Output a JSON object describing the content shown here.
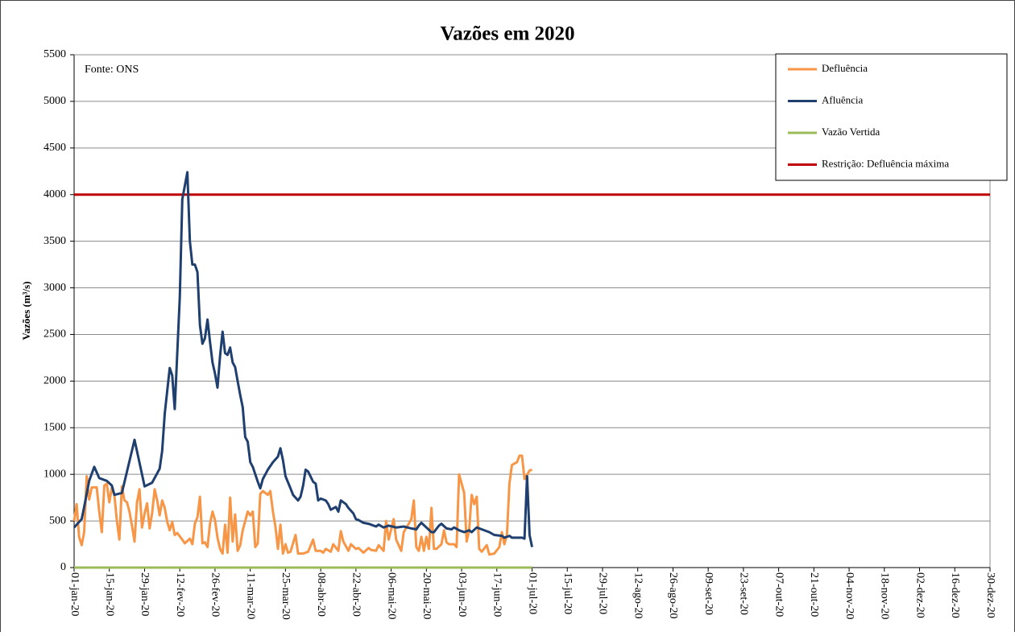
{
  "chart_data": {
    "type": "line",
    "title": "Vazões em 2020",
    "ylabel": "Vazões (m³/s)",
    "annotation": "Fonte: ONS",
    "legend": "upper right",
    "grid": true,
    "ylim": [
      0,
      5500
    ],
    "yticks": [
      0,
      500,
      1000,
      1500,
      2000,
      2500,
      3000,
      3500,
      4000,
      4500,
      5000,
      5500
    ],
    "xlim": [
      "2020-01-01",
      "2020-12-30"
    ],
    "xticks": [
      {
        "value": "2020-01-01",
        "label": "01-jan-20"
      },
      {
        "value": "2020-01-15",
        "label": "15-jan-20"
      },
      {
        "value": "2020-01-29",
        "label": "29-jan-20"
      },
      {
        "value": "2020-02-12",
        "label": "12-fev-20"
      },
      {
        "value": "2020-02-26",
        "label": "26-fev-20"
      },
      {
        "value": "2020-03-11",
        "label": "11-mar-20"
      },
      {
        "value": "2020-03-25",
        "label": "25-mar-20"
      },
      {
        "value": "2020-04-08",
        "label": "08-abr-20"
      },
      {
        "value": "2020-04-22",
        "label": "22-abr-20"
      },
      {
        "value": "2020-05-06",
        "label": "06-mai-20"
      },
      {
        "value": "2020-05-20",
        "label": "20-mai-20"
      },
      {
        "value": "2020-06-03",
        "label": "03-jun-20"
      },
      {
        "value": "2020-06-17",
        "label": "17-jun-20"
      },
      {
        "value": "2020-07-01",
        "label": "01-jul-20"
      },
      {
        "value": "2020-07-15",
        "label": "15-jul-20"
      },
      {
        "value": "2020-07-29",
        "label": "29-jul-20"
      },
      {
        "value": "2020-08-12",
        "label": "12-ago-20"
      },
      {
        "value": "2020-08-26",
        "label": "26-ago-20"
      },
      {
        "value": "2020-09-09",
        "label": "09-set-20"
      },
      {
        "value": "2020-09-23",
        "label": "23-set-20"
      },
      {
        "value": "2020-10-07",
        "label": "07-out-20"
      },
      {
        "value": "2020-10-21",
        "label": "21-out-20"
      },
      {
        "value": "2020-11-04",
        "label": "04-nov-20"
      },
      {
        "value": "2020-11-18",
        "label": "18-nov-20"
      },
      {
        "value": "2020-12-02",
        "label": "02-dez-20"
      },
      {
        "value": "2020-12-16",
        "label": "16-dez-20"
      },
      {
        "value": "2020-12-30",
        "label": "30-dez-20"
      }
    ],
    "series": [
      {
        "name": "Defluência",
        "color": "#f79646",
        "x": [
          "2020-01-01",
          "2020-01-02",
          "2020-01-03",
          "2020-01-04",
          "2020-01-05",
          "2020-01-06",
          "2020-01-07",
          "2020-01-08",
          "2020-01-10",
          "2020-01-11",
          "2020-01-12",
          "2020-01-13",
          "2020-01-14",
          "2020-01-15",
          "2020-01-16",
          "2020-01-17",
          "2020-01-18",
          "2020-01-19",
          "2020-01-20",
          "2020-01-21",
          "2020-01-22",
          "2020-01-23",
          "2020-01-24",
          "2020-01-25",
          "2020-01-26",
          "2020-01-27",
          "2020-01-28",
          "2020-01-29",
          "2020-01-30",
          "2020-01-31",
          "2020-02-01",
          "2020-02-02",
          "2020-02-03",
          "2020-02-04",
          "2020-02-05",
          "2020-02-06",
          "2020-02-07",
          "2020-02-08",
          "2020-02-09",
          "2020-02-10",
          "2020-02-11",
          "2020-02-13",
          "2020-02-14",
          "2020-02-16",
          "2020-02-17",
          "2020-02-18",
          "2020-02-19",
          "2020-02-20",
          "2020-02-21",
          "2020-02-22",
          "2020-02-23",
          "2020-02-24",
          "2020-02-25",
          "2020-02-26",
          "2020-02-27",
          "2020-02-28",
          "2020-02-29",
          "2020-03-01",
          "2020-03-02",
          "2020-03-03",
          "2020-03-04",
          "2020-03-05",
          "2020-03-06",
          "2020-03-07",
          "2020-03-08",
          "2020-03-10",
          "2020-03-11",
          "2020-03-12",
          "2020-03-13",
          "2020-03-14",
          "2020-03-15",
          "2020-03-16",
          "2020-03-18",
          "2020-03-19",
          "2020-03-20",
          "2020-03-21",
          "2020-03-22",
          "2020-03-23",
          "2020-03-24",
          "2020-03-25",
          "2020-03-26",
          "2020-03-27",
          "2020-03-29",
          "2020-03-30",
          "2020-03-31",
          "2020-04-01",
          "2020-04-03",
          "2020-04-05",
          "2020-04-06",
          "2020-04-08",
          "2020-04-09",
          "2020-04-10",
          "2020-04-12",
          "2020-04-13",
          "2020-04-15",
          "2020-04-16",
          "2020-04-17",
          "2020-04-19",
          "2020-04-20",
          "2020-04-22",
          "2020-04-23",
          "2020-04-25",
          "2020-04-27",
          "2020-04-28",
          "2020-04-30",
          "2020-05-01",
          "2020-05-03",
          "2020-05-04",
          "2020-05-05",
          "2020-05-07",
          "2020-05-08",
          "2020-05-10",
          "2020-05-11",
          "2020-05-13",
          "2020-05-14",
          "2020-05-15",
          "2020-05-16",
          "2020-05-17",
          "2020-05-18",
          "2020-05-19",
          "2020-05-20",
          "2020-05-21",
          "2020-05-22",
          "2020-05-23",
          "2020-05-24",
          "2020-05-26",
          "2020-05-27",
          "2020-05-28",
          "2020-05-29",
          "2020-05-31",
          "2020-06-01",
          "2020-06-02",
          "2020-06-04",
          "2020-06-05",
          "2020-06-06",
          "2020-06-07",
          "2020-06-08",
          "2020-06-09",
          "2020-06-10",
          "2020-06-11",
          "2020-06-13",
          "2020-06-14",
          "2020-06-16",
          "2020-06-18",
          "2020-06-19",
          "2020-06-20",
          "2020-06-21",
          "2020-06-22",
          "2020-06-23",
          "2020-06-25",
          "2020-06-26",
          "2020-06-27",
          "2020-06-28",
          "2020-06-30",
          "2020-07-01"
        ],
        "values": [
          500,
          680,
          330,
          240,
          380,
          980,
          730,
          860,
          860,
          600,
          380,
          880,
          900,
          700,
          860,
          780,
          500,
          300,
          870,
          720,
          700,
          600,
          450,
          280,
          700,
          840,
          430,
          580,
          690,
          420,
          580,
          840,
          720,
          560,
          720,
          640,
          490,
          400,
          490,
          350,
          370,
          300,
          260,
          310,
          250,
          470,
          540,
          760,
          260,
          270,
          220,
          470,
          600,
          510,
          320,
          200,
          150,
          460,
          160,
          750,
          280,
          570,
          180,
          240,
          400,
          600,
          560,
          600,
          220,
          260,
          790,
          820,
          780,
          820,
          600,
          440,
          200,
          460,
          150,
          250,
          160,
          170,
          350,
          150,
          150,
          150,
          170,
          300,
          180,
          180,
          160,
          200,
          170,
          250,
          180,
          390,
          280,
          180,
          250,
          200,
          210,
          160,
          210,
          190,
          180,
          240,
          180,
          500,
          300,
          520,
          300,
          180,
          380,
          470,
          520,
          720,
          220,
          180,
          330,
          180,
          330,
          200,
          640,
          200,
          200,
          250,
          400,
          270,
          250,
          250,
          220,
          1000,
          800,
          280,
          400,
          780,
          680,
          760,
          200,
          170,
          240,
          140,
          150,
          220,
          380,
          250,
          350,
          900,
          1100,
          1130,
          1200,
          1200,
          950,
          1040,
          1050
        ]
      },
      {
        "name": "Afluência",
        "color": "#1f3f6e",
        "x": [
          "2020-01-01",
          "2020-01-04",
          "2020-01-05",
          "2020-01-07",
          "2020-01-09",
          "2020-01-11",
          "2020-01-14",
          "2020-01-16",
          "2020-01-17",
          "2020-01-20",
          "2020-01-25",
          "2020-01-28",
          "2020-01-29",
          "2020-02-01",
          "2020-02-04",
          "2020-02-05",
          "2020-02-06",
          "2020-02-08",
          "2020-02-09",
          "2020-02-10",
          "2020-02-12",
          "2020-02-13",
          "2020-02-15",
          "2020-02-16",
          "2020-02-17",
          "2020-02-18",
          "2020-02-19",
          "2020-02-20",
          "2020-02-21",
          "2020-02-22",
          "2020-02-23",
          "2020-02-24",
          "2020-02-25",
          "2020-02-26",
          "2020-02-27",
          "2020-02-28",
          "2020-02-29",
          "2020-03-01",
          "2020-03-02",
          "2020-03-03",
          "2020-03-04",
          "2020-03-05",
          "2020-03-06",
          "2020-03-07",
          "2020-03-08",
          "2020-03-09",
          "2020-03-10",
          "2020-03-11",
          "2020-03-12",
          "2020-03-14",
          "2020-03-15",
          "2020-03-16",
          "2020-03-18",
          "2020-03-20",
          "2020-03-22",
          "2020-03-23",
          "2020-03-24",
          "2020-03-25",
          "2020-03-27",
          "2020-03-28",
          "2020-03-30",
          "2020-03-31",
          "2020-04-01",
          "2020-04-02",
          "2020-04-03",
          "2020-04-05",
          "2020-04-06",
          "2020-04-07",
          "2020-04-08",
          "2020-04-10",
          "2020-04-11",
          "2020-04-12",
          "2020-04-14",
          "2020-04-15",
          "2020-04-16",
          "2020-04-18",
          "2020-04-19",
          "2020-04-21",
          "2020-04-22",
          "2020-04-23",
          "2020-04-25",
          "2020-04-27",
          "2020-04-28",
          "2020-04-30",
          "2020-05-01",
          "2020-05-03",
          "2020-05-05",
          "2020-05-08",
          "2020-05-11",
          "2020-05-14",
          "2020-05-16",
          "2020-05-17",
          "2020-05-18",
          "2020-05-20",
          "2020-05-22",
          "2020-05-23",
          "2020-05-25",
          "2020-05-26",
          "2020-05-28",
          "2020-05-30",
          "2020-05-31",
          "2020-06-02",
          "2020-06-04",
          "2020-06-06",
          "2020-06-07",
          "2020-06-09",
          "2020-06-11",
          "2020-06-14",
          "2020-06-16",
          "2020-06-19",
          "2020-06-20",
          "2020-06-22",
          "2020-06-23",
          "2020-06-27",
          "2020-06-28",
          "2020-06-29",
          "2020-06-30",
          "2020-07-01"
        ],
        "values": [
          430,
          520,
          650,
          930,
          1080,
          960,
          930,
          880,
          780,
          800,
          1370,
          1000,
          870,
          910,
          1060,
          1250,
          1650,
          2140,
          2060,
          1700,
          2900,
          3950,
          4240,
          3500,
          3250,
          3250,
          3170,
          2600,
          2400,
          2460,
          2660,
          2420,
          2200,
          2080,
          1930,
          2270,
          2530,
          2300,
          2280,
          2360,
          2200,
          2150,
          2000,
          1850,
          1720,
          1400,
          1350,
          1130,
          1080,
          920,
          850,
          950,
          1050,
          1130,
          1190,
          1280,
          1150,
          980,
          850,
          780,
          720,
          760,
          880,
          1050,
          1030,
          920,
          900,
          720,
          740,
          720,
          680,
          620,
          650,
          600,
          720,
          680,
          640,
          580,
          520,
          510,
          480,
          470,
          460,
          440,
          460,
          430,
          450,
          430,
          440,
          420,
          410,
          450,
          480,
          430,
          380,
          380,
          450,
          470,
          420,
          410,
          430,
          400,
          380,
          400,
          380,
          430,
          410,
          380,
          350,
          340,
          320,
          340,
          320,
          320,
          310,
          980,
          350,
          220
        ]
      },
      {
        "name": "Vazão Vertida",
        "color": "#9bbb59",
        "x": [
          "2020-01-01",
          "2020-07-01"
        ],
        "values": [
          0,
          0
        ]
      },
      {
        "name": "Restrição: Defluência máxima",
        "color": "#c00000",
        "x": [
          "2020-01-01",
          "2020-12-30"
        ],
        "values": [
          4000,
          4000
        ]
      }
    ]
  }
}
